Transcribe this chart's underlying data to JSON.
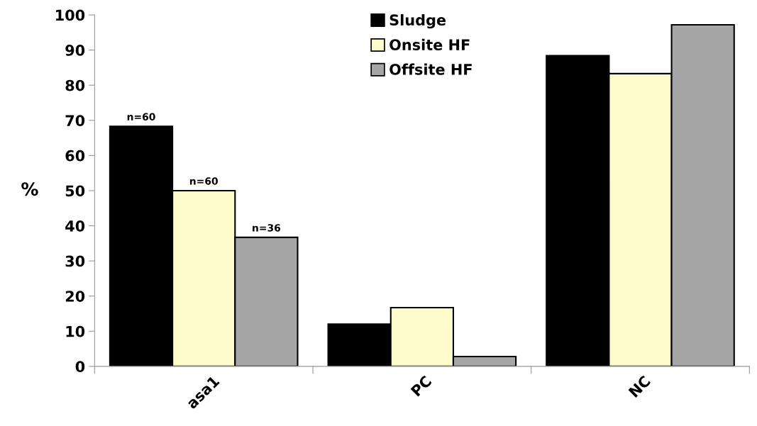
{
  "chart_data": {
    "type": "bar",
    "ylabel": "%",
    "categories": [
      "asa1",
      "PC",
      "NC"
    ],
    "series": [
      {
        "name": "Sludge",
        "color": "#000000",
        "values": [
          68.3,
          12.0,
          88.4
        ]
      },
      {
        "name": "Onsite HF",
        "color": "#fefccb",
        "values": [
          50.0,
          16.7,
          83.3
        ]
      },
      {
        "name": "Offsite HF",
        "color": "#a6a6a6",
        "values": [
          36.7,
          2.8,
          97.2
        ]
      }
    ],
    "annotations": [
      "n=60",
      "n=60",
      "n=36"
    ],
    "ylim": [
      0,
      100
    ],
    "yticks": [
      0,
      10,
      20,
      30,
      40,
      50,
      60,
      70,
      80,
      90,
      100
    ],
    "grid": false,
    "legend": "top"
  }
}
